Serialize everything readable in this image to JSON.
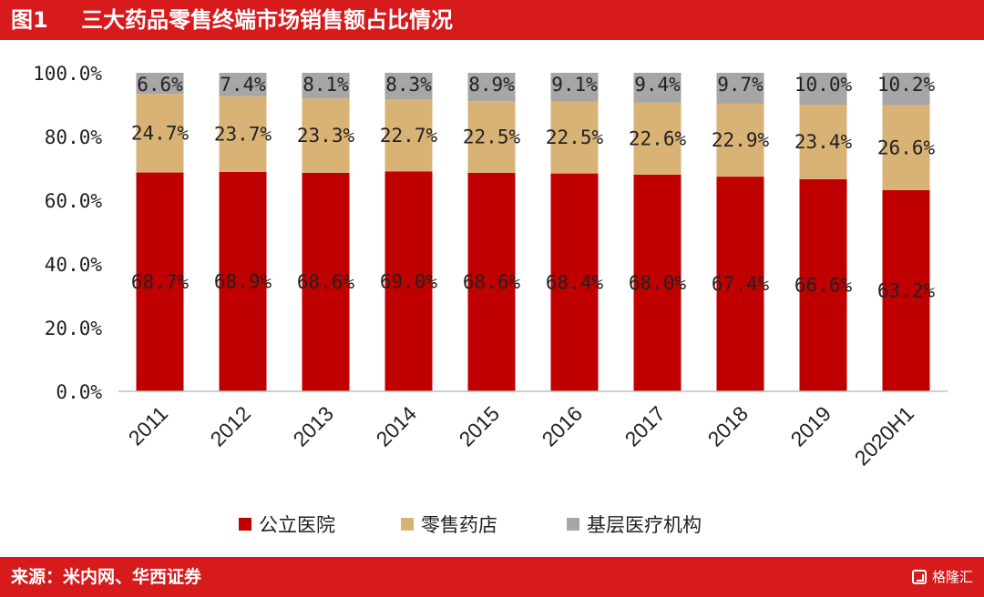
{
  "header": {
    "figure_number": "图1",
    "title": "三大药品零售终端市场销售额占比情况"
  },
  "footer": {
    "source": "来源：米内网、华西证券",
    "brand": "格隆汇"
  },
  "chart_data": {
    "type": "bar",
    "stacked": true,
    "categories": [
      "2011",
      "2012",
      "2013",
      "2014",
      "2015",
      "2016",
      "2017",
      "2018",
      "2019",
      "2020H1"
    ],
    "series": [
      {
        "name": "公立医院",
        "color": "#c00000",
        "values": [
          68.7,
          68.9,
          68.6,
          69.0,
          68.6,
          68.4,
          68.0,
          67.4,
          66.6,
          63.2
        ],
        "labels": [
          "68.7%",
          "68.9%",
          "68.6%",
          "69.0%",
          "68.6%",
          "68.4%",
          "68.0%",
          "67.4%",
          "66.6%",
          "63.2%"
        ]
      },
      {
        "name": "零售药店",
        "color": "#d9b276",
        "values": [
          24.7,
          23.7,
          23.3,
          22.7,
          22.5,
          22.5,
          22.6,
          22.9,
          23.4,
          26.6
        ],
        "labels": [
          "24.7%",
          "23.7%",
          "23.3%",
          "22.7%",
          "22.5%",
          "22.5%",
          "22.6%",
          "22.9%",
          "23.4%",
          "26.6%"
        ]
      },
      {
        "name": "基层医疗机构",
        "color": "#a6a6a6",
        "values": [
          6.6,
          7.4,
          8.1,
          8.3,
          8.9,
          9.1,
          9.4,
          9.7,
          10.0,
          10.2
        ],
        "labels": [
          "6.6%",
          "7.4%",
          "8.1%",
          "8.3%",
          "8.9%",
          "9.1%",
          "9.4%",
          "9.7%",
          "10.0%",
          "10.2%"
        ]
      }
    ],
    "ylim": [
      0,
      100
    ],
    "yticks": [
      0,
      20,
      40,
      60,
      80,
      100
    ],
    "ytick_labels": [
      "0.0%",
      "20.0%",
      "40.0%",
      "60.0%",
      "80.0%",
      "100.0%"
    ],
    "grid": false,
    "legend_position": "bottom"
  }
}
